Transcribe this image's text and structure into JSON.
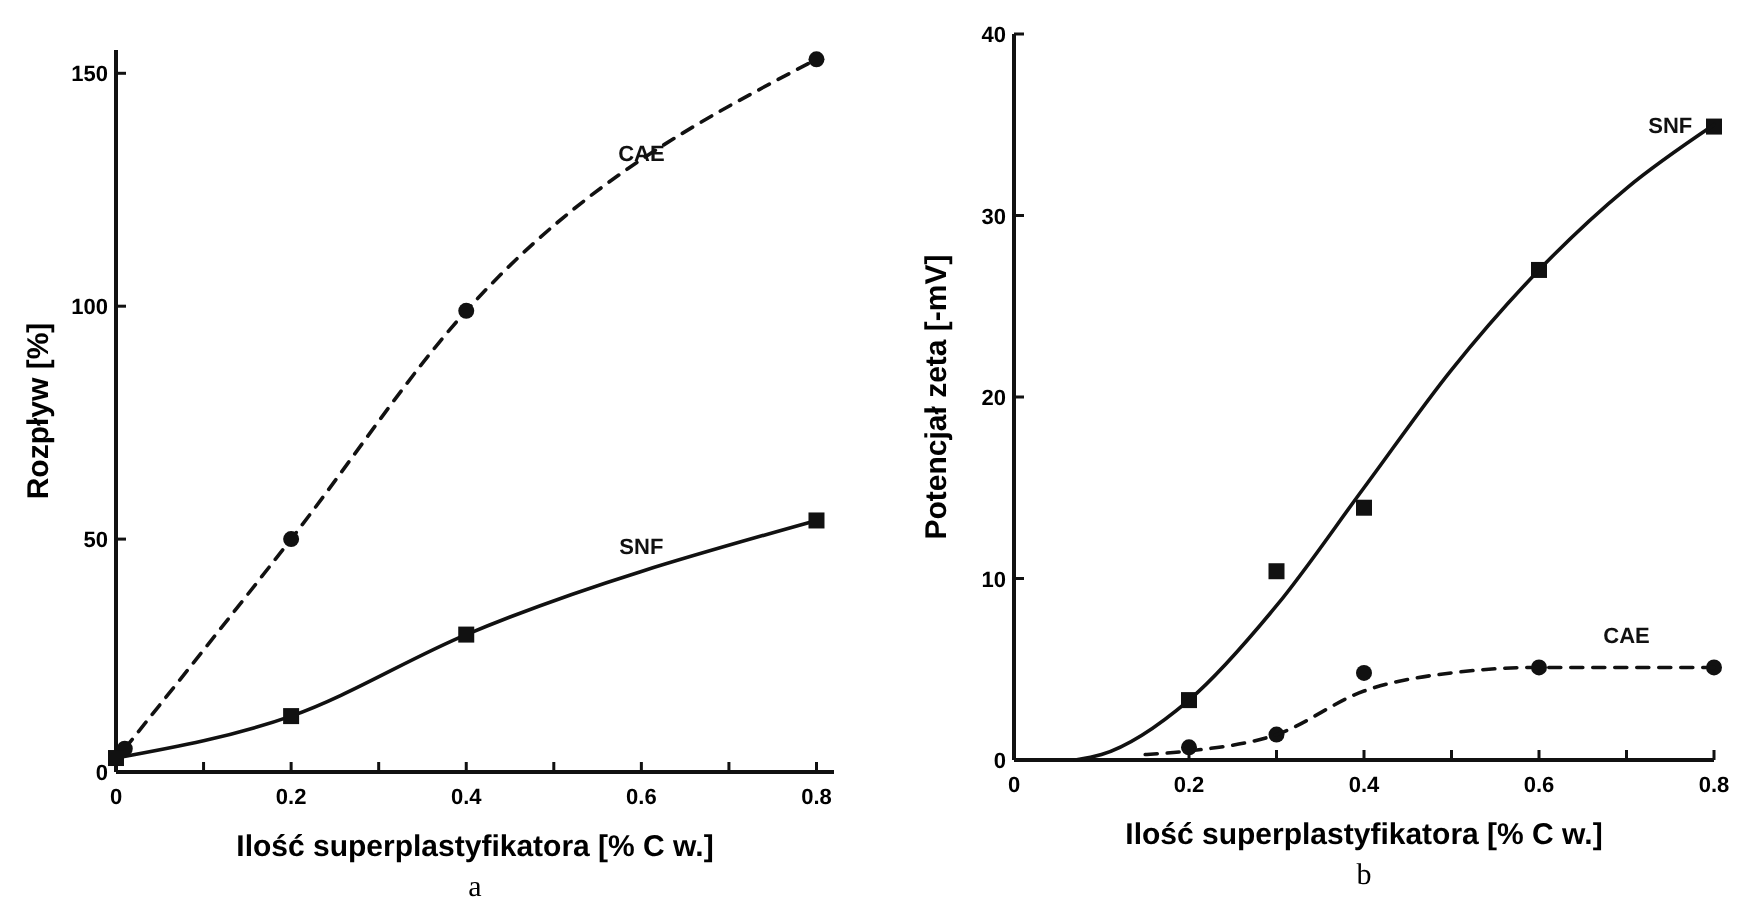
{
  "chart_data": [
    {
      "type": "line",
      "xlabel": "Ilość superplastyfikatora [% C w.]",
      "ylabel": "Rozpływ [%]",
      "xlim": [
        0,
        0.82
      ],
      "ylim": [
        0,
        155
      ],
      "xticks": [
        0,
        {
          "value": 0.1,
          "label": null
        },
        0.2,
        {
          "value": 0.3,
          "label": null
        },
        0.4,
        {
          "value": 0.5,
          "label": null
        },
        0.6,
        {
          "value": 0.7,
          "label": null
        },
        0.8
      ],
      "yticks": [
        0,
        50,
        100,
        150
      ],
      "grid": false,
      "legend": false,
      "series": [
        {
          "name": "CAE",
          "color": "#111111",
          "x": [
            0.01,
            0.2,
            0.4,
            0.8
          ],
          "values": [
            5,
            50,
            99,
            153
          ],
          "marker": "circle",
          "line_style": "dashed"
        },
        {
          "name": "SNF",
          "color": "#111111",
          "x": [
            0,
            0.2,
            0.4,
            0.8
          ],
          "values": [
            3,
            12,
            29.5,
            54
          ],
          "marker": "square",
          "line_style": "solid"
        }
      ],
      "annotations": [
        "a"
      ]
    },
    {
      "type": "line",
      "xlabel": "Ilość superplastyfikatora [% C w.]",
      "ylabel": "Potencjał zeta [-mV]",
      "xlim": [
        0,
        0.8
      ],
      "ylim": [
        0,
        40
      ],
      "xticks": [
        0,
        0.2,
        {
          "value": 0.3,
          "label": null
        },
        0.4,
        {
          "value": 0.5,
          "label": null
        },
        0.6,
        {
          "value": 0.7,
          "label": null
        },
        0.8
      ],
      "yticks": [
        0,
        10,
        20,
        30,
        40
      ],
      "grid": false,
      "legend": false,
      "series": [
        {
          "type": "scatter",
          "color": "#111111",
          "x": [
            0.2,
            0.3,
            0.4,
            0.6,
            0.8
          ],
          "values": [
            3.3,
            10.4,
            13.9,
            27,
            34.9
          ],
          "marker": "square"
        },
        {
          "type": "scatter",
          "color": "#111111",
          "x": [
            0.2,
            0.3,
            0.4,
            0.6,
            0.8
          ],
          "values": [
            0.7,
            1.4,
            4.8,
            5.1,
            5.1
          ],
          "marker": "circle"
        },
        {
          "name": "SNF",
          "color": "#111111",
          "x": [
            0.07,
            0.1,
            0.2,
            0.3,
            0.4,
            0.5,
            0.6,
            0.7,
            0.8
          ],
          "values": [
            0,
            0.3,
            3.3,
            8.5,
            15,
            21.5,
            27,
            31.5,
            35
          ],
          "marker": "none",
          "line_style": "solid"
        },
        {
          "name": "CAE",
          "color": "#111111",
          "x": [
            0.15,
            0.2,
            0.3,
            0.4,
            0.5,
            0.6,
            0.8
          ],
          "values": [
            0.3,
            0.5,
            1.4,
            3.8,
            4.8,
            5.1,
            5.1
          ],
          "marker": "none",
          "line_style": "dashed"
        }
      ],
      "annotations": [
        "b"
      ]
    }
  ]
}
